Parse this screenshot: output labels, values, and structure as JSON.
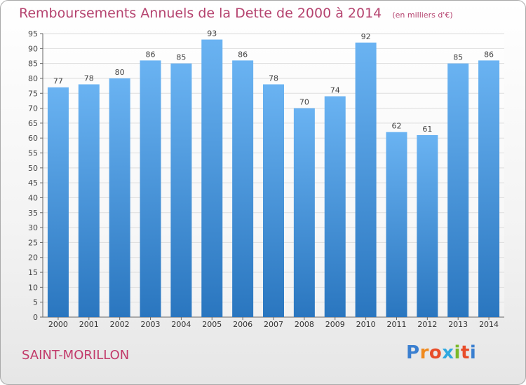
{
  "chart_data": {
    "type": "bar",
    "title": "Remboursements Annuels de la Dette de 2000 à 2014",
    "unit": "(en milliers d'€)",
    "categories": [
      "2000",
      "2001",
      "2002",
      "2003",
      "2004",
      "2005",
      "2006",
      "2007",
      "2008",
      "2009",
      "2010",
      "2011",
      "2012",
      "2013",
      "2014"
    ],
    "values": [
      77,
      78,
      80,
      86,
      85,
      93,
      86,
      78,
      70,
      74,
      92,
      62,
      61,
      85,
      86
    ],
    "yticks": [
      0,
      5,
      10,
      15,
      20,
      25,
      30,
      35,
      40,
      45,
      50,
      55,
      60,
      65,
      70,
      75,
      80,
      85,
      90,
      95
    ],
    "ylim": [
      0,
      95
    ],
    "xlabel": "",
    "ylabel": "",
    "grid": true,
    "colors": {
      "bar": "#3d8fd8",
      "bar_light": "#6ab3f2",
      "title": "#b5436f",
      "grid": "#dddddd"
    }
  },
  "commune": "SAINT-MORILLON",
  "logo": {
    "text": "Proxiti",
    "letters": [
      "P",
      "r",
      "o",
      "x",
      "i",
      "t",
      "i"
    ],
    "colors": [
      "#3a7fd0",
      "#f08a1e",
      "#e84d2a",
      "#2ea8e0",
      "#7ab929",
      "#e84d2a",
      "#3a7fd0"
    ]
  }
}
